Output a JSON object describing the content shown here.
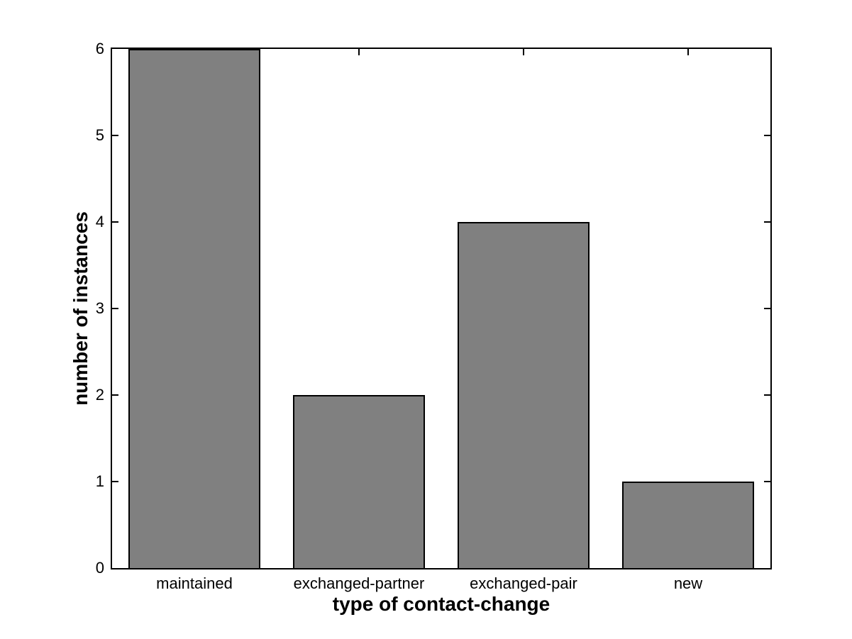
{
  "chart_data": {
    "type": "bar",
    "categories": [
      "maintained",
      "exchanged-partner",
      "exchanged-pair",
      "new"
    ],
    "values": [
      6,
      2,
      4,
      1
    ],
    "title": "",
    "xlabel": "type of contact-change",
    "ylabel": "number of instances",
    "ylim": [
      0,
      6
    ],
    "yticks": [
      0,
      1,
      2,
      3,
      4,
      5,
      6
    ],
    "grid": false,
    "legend": null,
    "bar_color": "#808080",
    "bar_edge_color": "#000000",
    "axis_color": "#000000",
    "background_color": "#ffffff",
    "bar_width_fraction": 0.8
  }
}
